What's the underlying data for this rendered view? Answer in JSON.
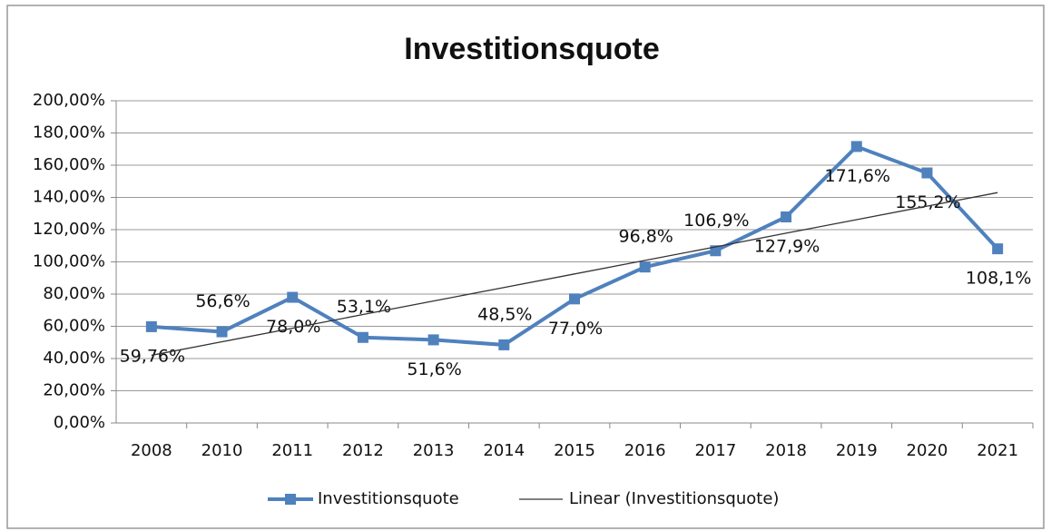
{
  "chart_data": {
    "type": "line",
    "title": "Investitionsquote",
    "categories": [
      "2008",
      "2010",
      "2011",
      "2012",
      "2013",
      "2014",
      "2015",
      "2016",
      "2017",
      "2018",
      "2019",
      "2020",
      "2021"
    ],
    "series": [
      {
        "name": "Investitionsquote",
        "color": "#4f81bd",
        "values": [
          59.76,
          56.6,
          78.0,
          53.1,
          51.6,
          48.5,
          77.0,
          96.8,
          106.9,
          127.9,
          171.6,
          155.2,
          108.1
        ],
        "value_labels": [
          "59,76%",
          "56,6%",
          "78,0%",
          "53,1%",
          "51,6%",
          "48,5%",
          "77,0%",
          "96,8%",
          "106,9%",
          "127,9%",
          "171,6%",
          "155,2%",
          "108,1%"
        ]
      },
      {
        "name": "Linear (Investitionsquote)",
        "color": "#333333",
        "values": [
          42,
          50.4,
          58.8,
          67.3,
          75.7,
          84.1,
          92.5,
          100.9,
          109.3,
          117.8,
          126.2,
          134.6,
          143
        ]
      }
    ],
    "ylim": [
      0,
      200
    ],
    "yticks": [
      {
        "value": 0,
        "label": "0,00%"
      },
      {
        "value": 20,
        "label": "20,00%"
      },
      {
        "value": 40,
        "label": "40,00%"
      },
      {
        "value": 60,
        "label": "60,00%"
      },
      {
        "value": 80,
        "label": "80,00%"
      },
      {
        "value": 100,
        "label": "100,00%"
      },
      {
        "value": 120,
        "label": "120,00%"
      },
      {
        "value": 140,
        "label": "140,00%"
      },
      {
        "value": 160,
        "label": "160,00%"
      },
      {
        "value": 180,
        "label": "180,00%"
      },
      {
        "value": 200,
        "label": "200,00%"
      }
    ],
    "grid": true,
    "legend": "bottom"
  }
}
